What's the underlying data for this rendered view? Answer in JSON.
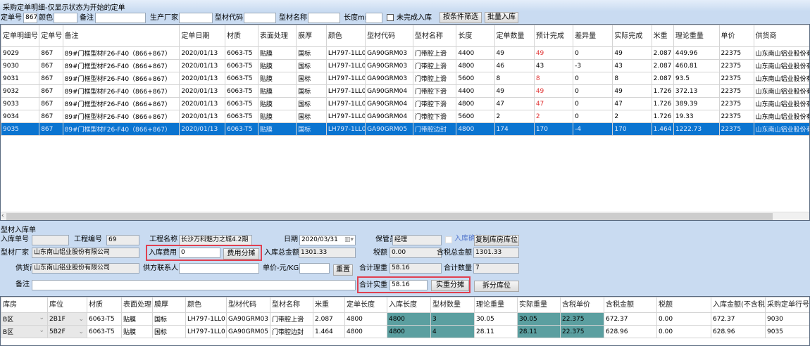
{
  "window": {
    "title": "采购定单明细-仅显示状态为开始的定单"
  },
  "filter": {
    "order_no_label": "定单号",
    "order_no": "867",
    "color_label": "颜色",
    "color": "",
    "remark_label": "备注",
    "remark": "",
    "maker_label": "生产厂家",
    "maker": "",
    "code_label": "型材代码",
    "code": "",
    "name_label": "型材名称",
    "name": "",
    "length_label": "长度mm",
    "length": "",
    "incomplete_label": "未完成入库",
    "filter_button": "按条件筛选",
    "batch_button": "批量入库"
  },
  "order_table": {
    "headers": [
      "定单明细号",
      "定单号",
      "备注",
      "定单日期",
      "材质",
      "表面处理",
      "膜厚",
      "颜色",
      "型材代码",
      "型材名称",
      "长度",
      "定单数量",
      "预计完成",
      "差异量",
      "实际完成",
      "米重",
      "理论重量",
      "单价",
      "供货商",
      ""
    ],
    "rows": [
      [
        "9029",
        "867",
        "89#门框型材F26-F40（866+867）",
        "2020/01/13",
        "6063-T5",
        "贴膜",
        "国标",
        "LH797-1LL0",
        "GA90GRM03",
        "门带腔上滑",
        "4400",
        "49",
        "49",
        "0",
        "49",
        "2.087",
        "449.96",
        "22375",
        "山东南山铝业股份有限公司"
      ],
      [
        "9030",
        "867",
        "89#门框型材F26-F40（866+867）",
        "2020/01/13",
        "6063-T5",
        "贴膜",
        "国标",
        "LH797-1LL0",
        "GA90GRM03",
        "门带腔上滑",
        "4800",
        "46",
        "43",
        "-3",
        "43",
        "2.087",
        "460.81",
        "22375",
        "山东南山铝业股份有限公司"
      ],
      [
        "9031",
        "867",
        "89#门框型材F26-F40（866+867）",
        "2020/01/13",
        "6063-T5",
        "贴膜",
        "国标",
        "LH797-1LL0",
        "GA90GRM03",
        "门带腔上滑",
        "5600",
        "8",
        "8",
        "0",
        "8",
        "2.087",
        "93.5",
        "22375",
        "山东南山铝业股份有限公司"
      ],
      [
        "9032",
        "867",
        "89#门框型材F26-F40（866+867）",
        "2020/01/13",
        "6063-T5",
        "贴膜",
        "国标",
        "LH797-1LL0",
        "GA90GRM04",
        "门带腔下滑",
        "4400",
        "49",
        "49",
        "0",
        "49",
        "1.726",
        "372.13",
        "22375",
        "山东南山铝业股份有限公司"
      ],
      [
        "9033",
        "867",
        "89#门框型材F26-F40（866+867）",
        "2020/01/13",
        "6063-T5",
        "贴膜",
        "国标",
        "LH797-1LL0",
        "GA90GRM04",
        "门带腔下滑",
        "4800",
        "47",
        "47",
        "0",
        "47",
        "1.726",
        "389.39",
        "22375",
        "山东南山铝业股份有限公司"
      ],
      [
        "9034",
        "867",
        "89#门框型材F26-F40（866+867）",
        "2020/01/13",
        "6063-T5",
        "贴膜",
        "国标",
        "LH797-1LL0",
        "GA90GRM04",
        "门带腔下滑",
        "5600",
        "2",
        "2",
        "0",
        "2",
        "1.726",
        "19.33",
        "22375",
        "山东南山铝业股份有限公司"
      ],
      [
        "9035",
        "867",
        "89#门框型材F26-F40（866+867）",
        "2020/01/13",
        "6063-T5",
        "贴膜",
        "国标",
        "LH797-1LL0",
        "GA90GRM05",
        "门带腔边封",
        "4800",
        "174",
        "170",
        "-4",
        "170",
        "1.464",
        "1222.73",
        "22375",
        "山东南山铝业股份有限公司"
      ]
    ],
    "red_forecast_rows": [
      0,
      2,
      3,
      4,
      5
    ],
    "selected_row": 6,
    "selected_color": "#0a74d0"
  },
  "form": {
    "section_title": "型材入库单",
    "receipt_no_label": "入库单号",
    "receipt_no": "",
    "project_no_label": "工程编号",
    "project_no": "69",
    "project_name_label": "工程名称",
    "project_name": "长沙万科魅力之城4.2期",
    "date_label": "日期",
    "date": "2020/03/31",
    "keeper_label": "保管员",
    "keeper": "经理",
    "confirm_label": "入库确认",
    "copy_button": "复制库房库位",
    "maker_label": "型材厂家",
    "maker": "山东南山铝业股份有限公司",
    "fee_label": "入库费用",
    "fee": "0",
    "fee_split_button": "费用分摊",
    "total_label": "入库总金额",
    "total": "1301.33",
    "tax_label": "税额",
    "tax": "0.00",
    "total_tax_label": "含税总金额",
    "total_tax": "1301.33",
    "supplier_label": "供货商",
    "supplier": "山东南山铝业股份有限公司",
    "contact_label": "供方联系人",
    "contact": "",
    "unit_price_label": "单价-元/KG",
    "unit_price": "",
    "reset_button": "重置",
    "theory_weight_label": "合计理重",
    "theory_weight": "58.16",
    "qty_label": "合计数量",
    "qty": "7",
    "remark_label": "备注",
    "remark": "",
    "actual_weight_label": "合计实重",
    "actual_weight": "58.16",
    "weight_split_button": "实重分摊",
    "split_location_button": "拆分库位",
    "highlight_color": "#e04050"
  },
  "receipt_table": {
    "headers": [
      "库房",
      "库位",
      "材质",
      "表面处理",
      "膜厚",
      "颜色",
      "型材代码",
      "型材名称",
      "米重",
      "定单长度",
      "入库长度",
      "型材数量",
      "理论重量",
      "实际重量",
      "含税单价",
      "含税金额",
      "税额",
      "入库金额(不含税)",
      "采购定单行号"
    ],
    "rows": [
      [
        "B区",
        "2B1F",
        "6063-T5",
        "贴膜",
        "国标",
        "LH797-1LL0",
        "GA90GRM03",
        "门带腔上滑",
        "2.087",
        "4800",
        "4800",
        "3",
        "30.05",
        "30.05",
        "22.375",
        "672.37",
        "0.00",
        "672.37",
        "9030"
      ],
      [
        "B区",
        "5B2F",
        "6063-T5",
        "贴膜",
        "国标",
        "LH797-1LL0",
        "GA90GRM05",
        "门带腔边封",
        "1.464",
        "4800",
        "4800",
        "4",
        "28.11",
        "28.11",
        "22.375",
        "628.96",
        "0.00",
        "628.96",
        "9035"
      ]
    ],
    "editable_color": "#5b9fa0"
  }
}
